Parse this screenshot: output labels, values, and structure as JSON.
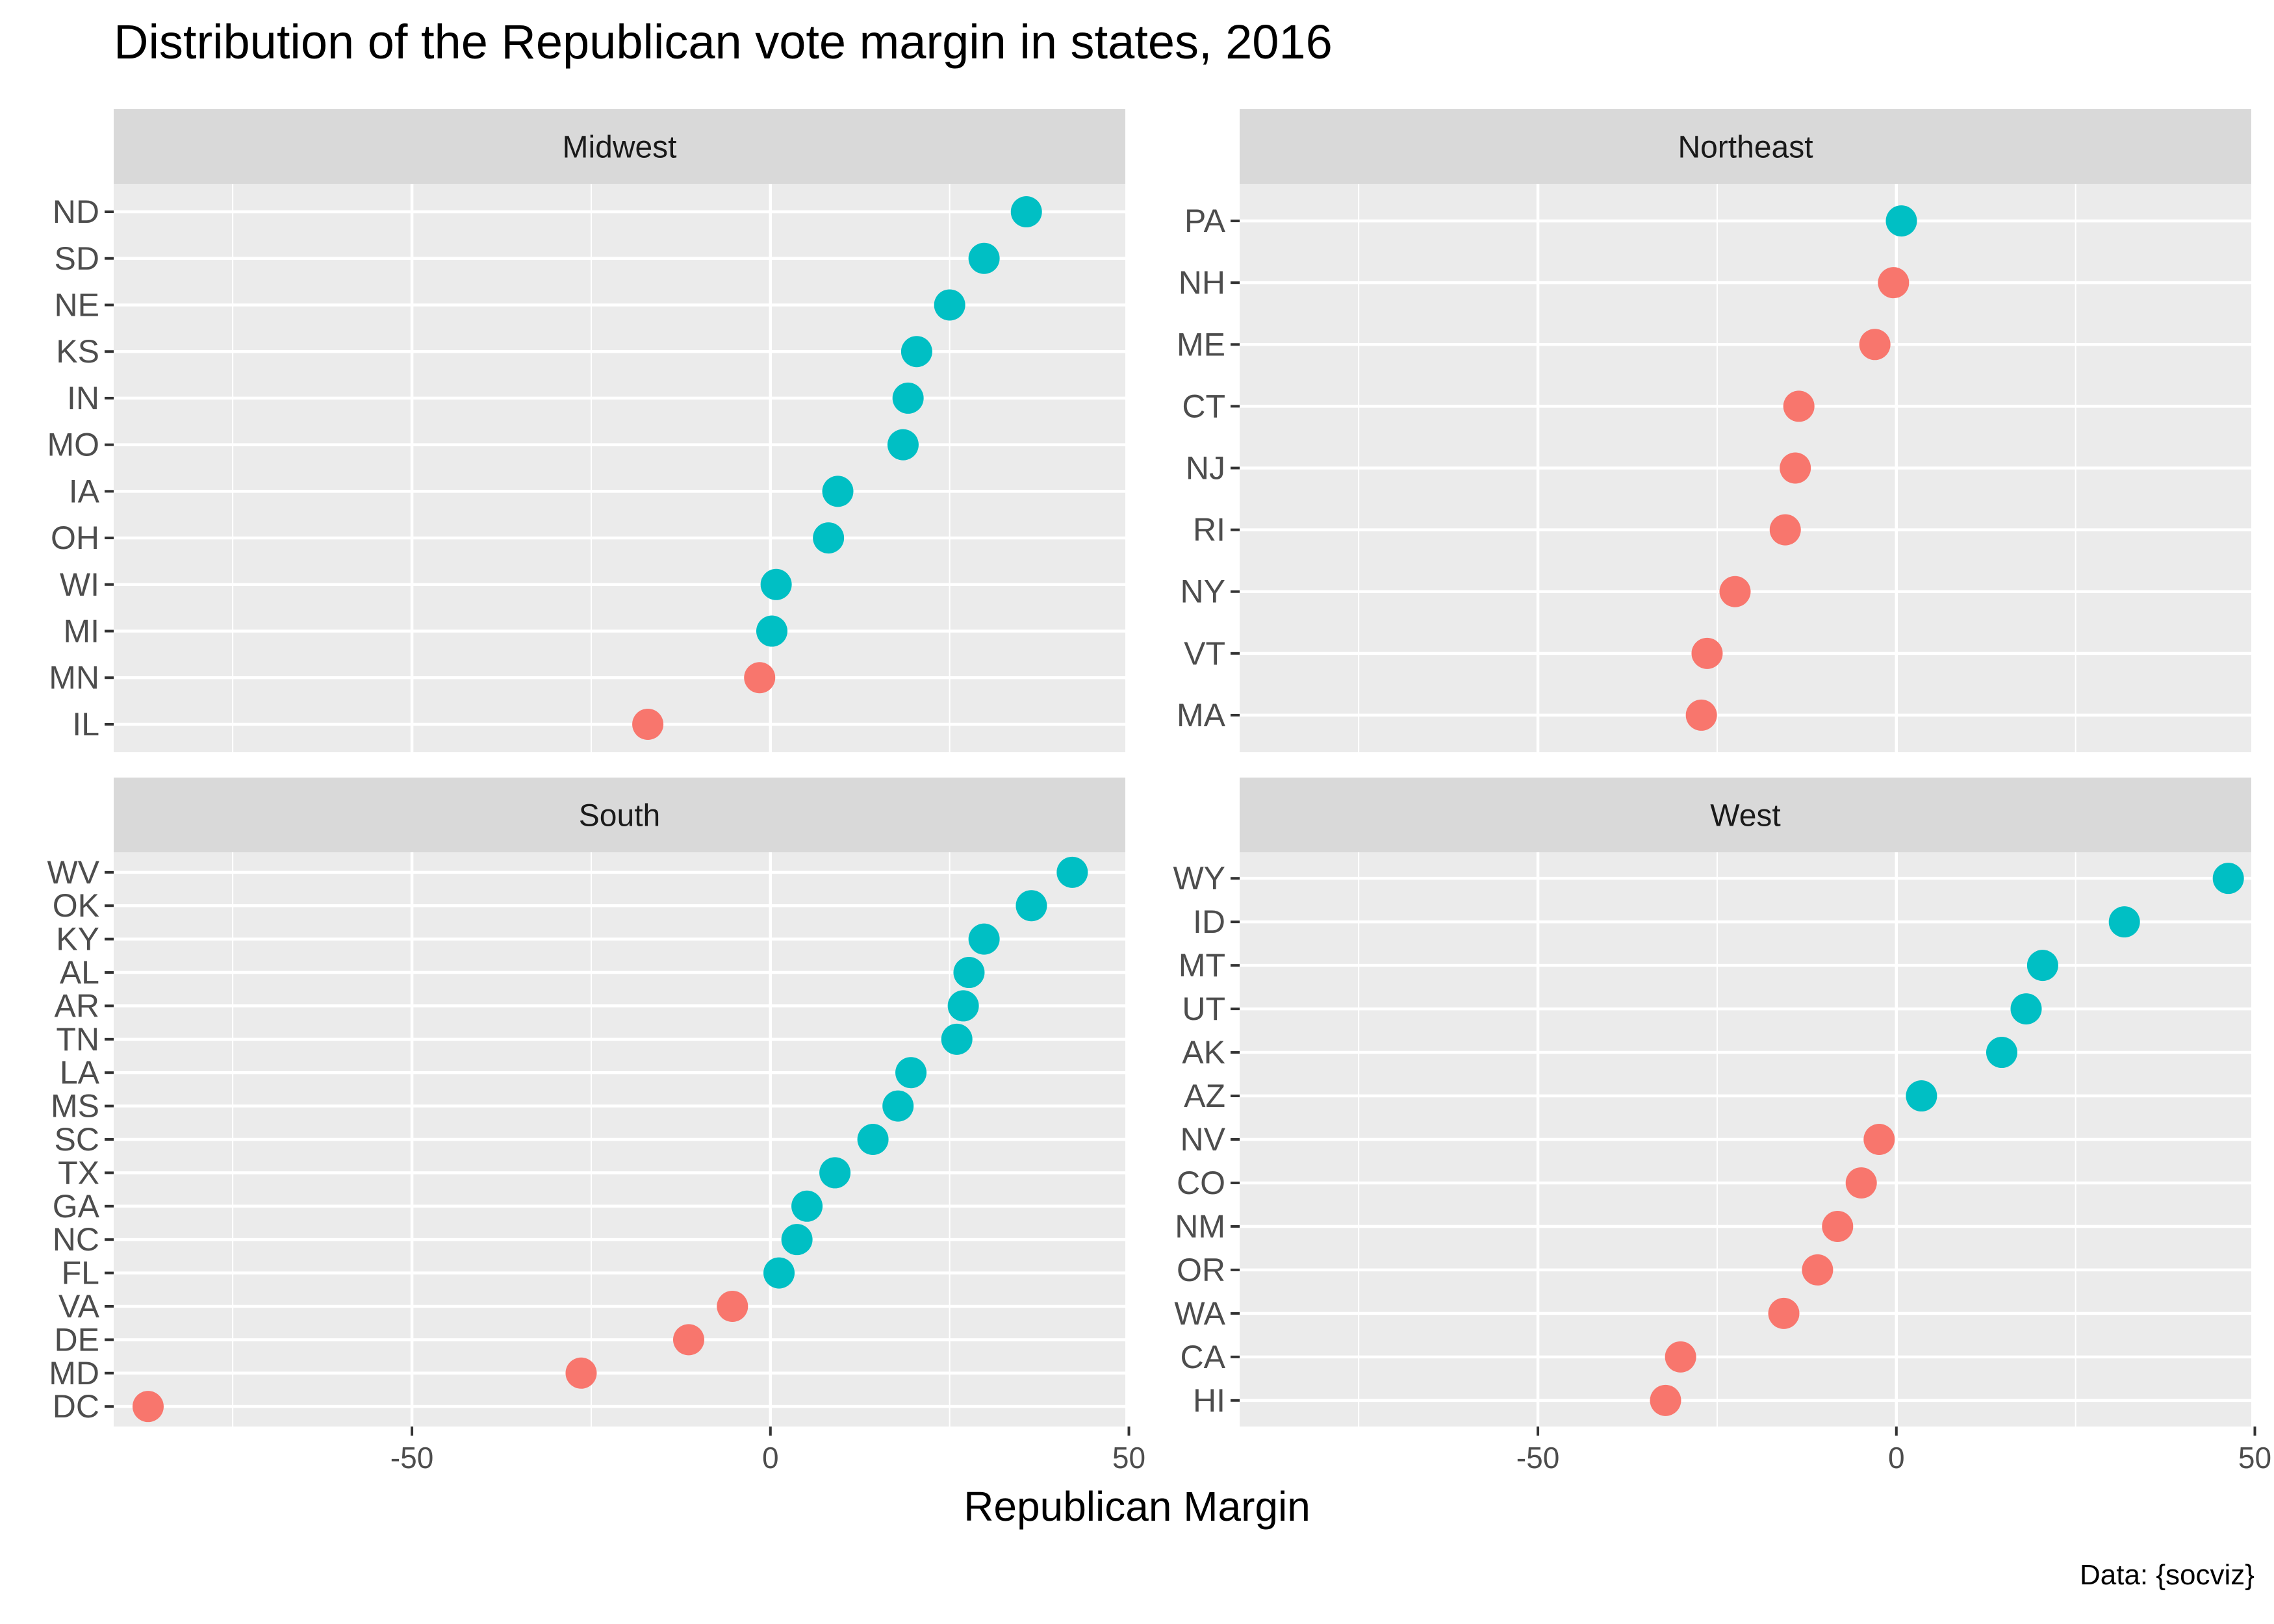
{
  "chart_data": {
    "type": "scatter",
    "title": "Distribution of the Republican vote margin in states, 2016",
    "xlabel": "Republican Margin",
    "ylabel": "",
    "caption": "Data: {socviz}",
    "xlim": [
      -91.6,
      49.5
    ],
    "x_ticks": [
      -50,
      0,
      50
    ],
    "x_tick_labels": [
      "-50",
      "0",
      "50"
    ],
    "x_minor_ticks": [
      -75,
      -25,
      25
    ],
    "grid": true,
    "legend": "none",
    "colors": {
      "positive": "#00BFC4",
      "negative": "#F8766D",
      "panel_bg": "#EBEBEB",
      "strip_bg": "#D9D9D9",
      "grid": "#FFFFFF",
      "text": "#4D4D4D"
    },
    "panels": [
      {
        "name": "Midwest",
        "states": [
          "ND",
          "SD",
          "NE",
          "KS",
          "IN",
          "MO",
          "IA",
          "OH",
          "WI",
          "MI",
          "MN",
          "IL"
        ],
        "margins": [
          35.7,
          29.8,
          25.0,
          20.4,
          19.2,
          18.5,
          9.4,
          8.1,
          0.8,
          0.2,
          -1.5,
          -17.1
        ]
      },
      {
        "name": "Northeast",
        "states": [
          "PA",
          "NH",
          "ME",
          "CT",
          "NJ",
          "RI",
          "NY",
          "VT",
          "MA"
        ],
        "margins": [
          0.7,
          -0.4,
          -3.0,
          -13.6,
          -14.1,
          -15.5,
          -22.5,
          -26.4,
          -27.2
        ]
      },
      {
        "name": "South",
        "states": [
          "WV",
          "OK",
          "KY",
          "AL",
          "AR",
          "TN",
          "LA",
          "MS",
          "SC",
          "TX",
          "GA",
          "NC",
          "FL",
          "VA",
          "DE",
          "MD",
          "DC"
        ],
        "margins": [
          42.1,
          36.4,
          29.8,
          27.7,
          26.9,
          26.0,
          19.6,
          17.8,
          14.3,
          9.0,
          5.1,
          3.7,
          1.2,
          -5.3,
          -11.4,
          -26.4,
          -86.8
        ]
      },
      {
        "name": "West",
        "states": [
          "WY",
          "ID",
          "MT",
          "UT",
          "AK",
          "AZ",
          "NV",
          "CO",
          "NM",
          "OR",
          "WA",
          "CA",
          "HI"
        ],
        "margins": [
          46.3,
          31.8,
          20.4,
          18.1,
          14.7,
          3.5,
          -2.4,
          -4.9,
          -8.2,
          -11.0,
          -15.7,
          -30.1,
          -32.2
        ]
      }
    ]
  }
}
